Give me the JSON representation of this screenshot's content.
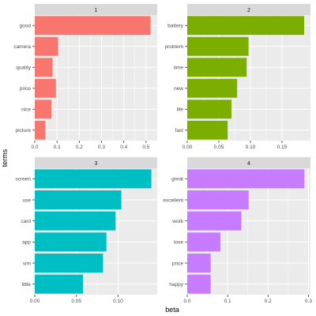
{
  "chart_data": [
    {
      "type": "bar",
      "orientation": "horizontal",
      "facet": "1",
      "color": "#F8766D",
      "categories": [
        "good",
        "camera",
        "quality",
        "price",
        "nice",
        "picture"
      ],
      "values": [
        0.52,
        0.105,
        0.08,
        0.095,
        0.075,
        0.048
      ],
      "xlim": [
        0,
        0.55
      ],
      "ticks": [
        0.0,
        0.1,
        0.2,
        0.3,
        0.4,
        0.5
      ],
      "tick_labels": [
        "0.0",
        "0.1",
        "0.2",
        "0.3",
        "0.4",
        "0.5"
      ]
    },
    {
      "type": "bar",
      "orientation": "horizontal",
      "facet": "2",
      "color": "#7CAE00",
      "categories": [
        "battery",
        "problem",
        "time",
        "new",
        "life",
        "fast"
      ],
      "values": [
        0.185,
        0.097,
        0.094,
        0.079,
        0.07,
        0.064
      ],
      "xlim": [
        0,
        0.195
      ],
      "ticks": [
        0.0,
        0.05,
        0.1,
        0.15
      ],
      "tick_labels": [
        "0.00",
        "0.05",
        "0.10",
        "0.15"
      ]
    },
    {
      "type": "bar",
      "orientation": "horizontal",
      "facet": "3",
      "color": "#00BFC4",
      "categories": [
        "screen",
        "use",
        "card",
        "app",
        "sim",
        "little"
      ],
      "values": [
        0.14,
        0.104,
        0.097,
        0.086,
        0.082,
        0.058
      ],
      "xlim": [
        0,
        0.147
      ],
      "ticks": [
        0.0,
        0.05,
        0.1
      ],
      "tick_labels": [
        "0.00",
        "0.05",
        "0.10"
      ]
    },
    {
      "type": "bar",
      "orientation": "horizontal",
      "facet": "4",
      "color": "#C77CFF",
      "categories": [
        "great",
        "excellent",
        "work",
        "love",
        "price",
        "happy"
      ],
      "values": [
        0.29,
        0.152,
        0.134,
        0.082,
        0.058,
        0.058
      ],
      "xlim": [
        0,
        0.305
      ],
      "ticks": [
        0.0,
        0.1,
        0.2,
        0.3
      ],
      "tick_labels": [
        "0.0",
        "0.1",
        "0.2",
        "0.3"
      ]
    }
  ],
  "axes": {
    "xlabel": "beta",
    "ylabel": "terms"
  },
  "theme": {
    "panel_bg": "#EBEBEB",
    "strip_bg": "#D9D9D9",
    "grid_major": "#FFFFFF"
  }
}
